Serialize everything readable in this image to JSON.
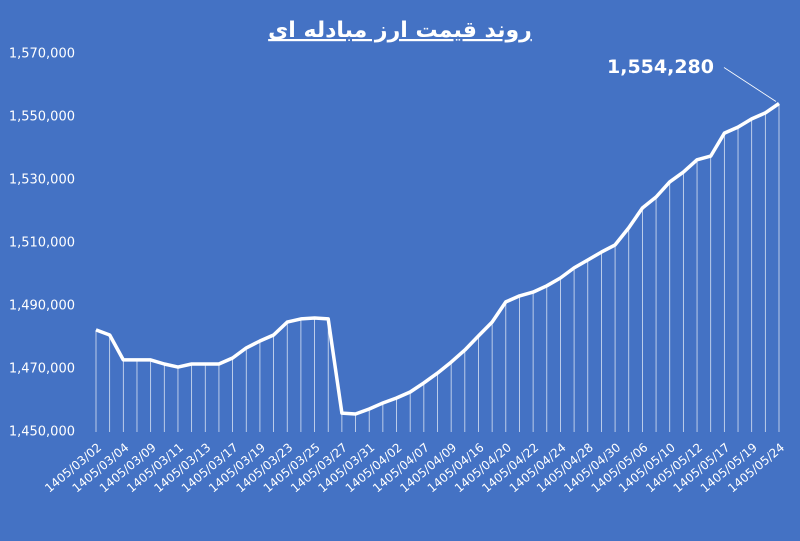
{
  "chart_data": {
    "type": "line",
    "title": "روند قیمت ارز مبادله ای",
    "categories": [
      "1405/03/02",
      null,
      "1405/03/04",
      null,
      "1405/03/09",
      null,
      "1405/03/11",
      null,
      "1405/03/13",
      null,
      "1405/03/17",
      null,
      "1405/03/19",
      null,
      "1405/03/23",
      null,
      "1405/03/25",
      null,
      "1405/03/27",
      null,
      "1405/03/31",
      null,
      "1405/04/02",
      null,
      "1405/04/07",
      null,
      "1405/04/09",
      null,
      "1405/04/16",
      null,
      "1405/04/20",
      null,
      "1405/04/22",
      null,
      "1405/04/24",
      null,
      "1405/04/28",
      null,
      "1405/04/30",
      null,
      "1405/05/06",
      null,
      "1405/05/10",
      null,
      "1405/05/12",
      null,
      "1405/05/17",
      null,
      "1405/05/19",
      null,
      "1405/05/24"
    ],
    "values": [
      1482400,
      1480800,
      1472900,
      1472900,
      1472900,
      1471600,
      1470600,
      1471600,
      1471600,
      1471600,
      1473500,
      1476700,
      1478900,
      1480800,
      1484900,
      1485900,
      1486200,
      1485900,
      1456000,
      1455700,
      1457300,
      1459200,
      1460800,
      1462700,
      1465600,
      1468700,
      1472200,
      1476000,
      1480500,
      1484900,
      1491300,
      1493200,
      1494400,
      1496400,
      1498900,
      1502100,
      1504600,
      1507100,
      1509400,
      1514800,
      1521100,
      1524600,
      1529400,
      1532500,
      1536400,
      1537600,
      1544900,
      1546800,
      1549400,
      1551300,
      1554280
    ],
    "value_labels": [
      null,
      null,
      null,
      null,
      null,
      null,
      null,
      null,
      null,
      null,
      null,
      null,
      null,
      null,
      null,
      null,
      null,
      null,
      null,
      null,
      null,
      null,
      null,
      null,
      null,
      null,
      null,
      null,
      null,
      null,
      null,
      null,
      null,
      null,
      null,
      null,
      null,
      null,
      null,
      null,
      null,
      null,
      null,
      null,
      null,
      null,
      null,
      null,
      null,
      null,
      "1,554,280"
    ],
    "color": "#ffffff",
    "ylim": [
      1450000,
      1570000
    ],
    "yticks": [
      {
        "value": 1450000,
        "label": "1,450,000"
      },
      {
        "value": 1470000,
        "label": "1,470,000"
      },
      {
        "value": 1490000,
        "label": "1,490,000"
      },
      {
        "value": 1510000,
        "label": "1,510,000"
      },
      {
        "value": 1530000,
        "label": "1,530,000"
      },
      {
        "value": 1550000,
        "label": "1,550,000"
      },
      {
        "value": 1570000,
        "label": "1,570,000"
      }
    ],
    "drop_lines": true
  }
}
